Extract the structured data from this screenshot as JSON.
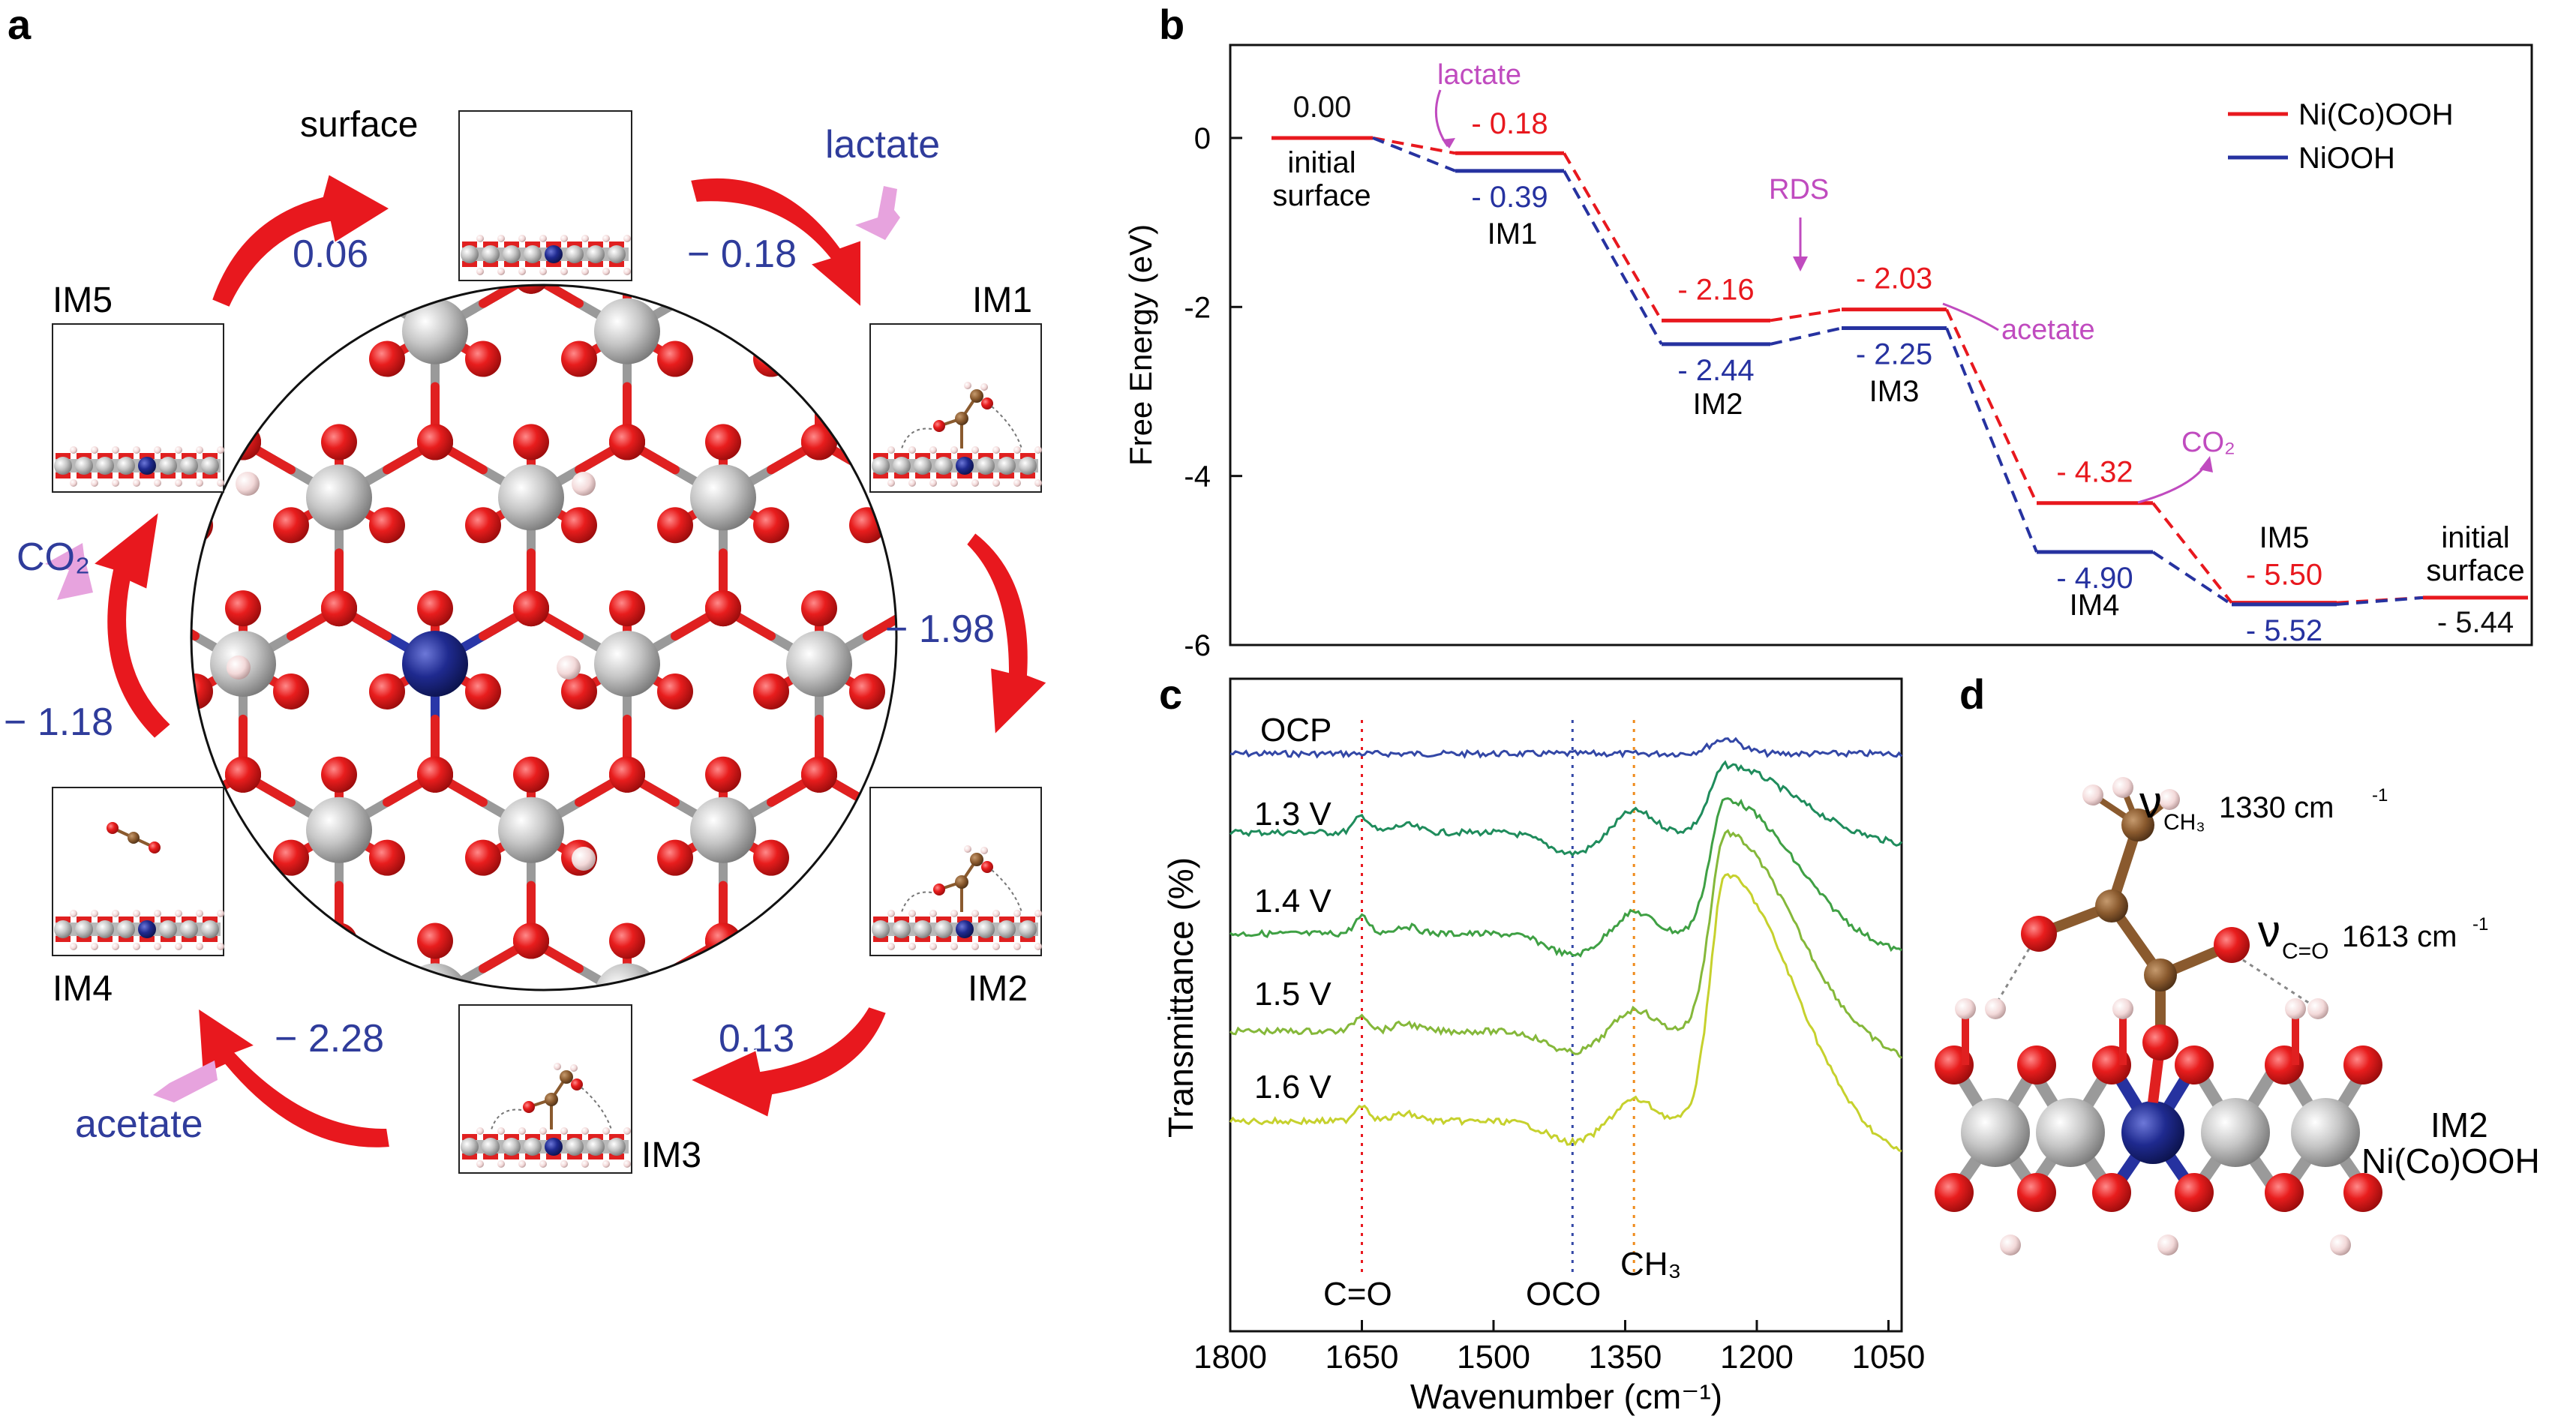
{
  "panels": {
    "a": "a",
    "b": "b",
    "c": "c",
    "d": "d"
  },
  "panel_a": {
    "states": [
      {
        "label": "surface"
      },
      {
        "label": "IM1"
      },
      {
        "label": "IM2"
      },
      {
        "label": "IM3"
      },
      {
        "label": "IM4"
      },
      {
        "label": "IM5"
      }
    ],
    "step_energies": [
      "0.06",
      "− 0.18",
      "− 1.98",
      "0.13",
      "− 2.28",
      "− 1.18"
    ],
    "species": {
      "lactate": "lactate",
      "co2": "CO₂",
      "acetate": "acetate"
    },
    "colors": {
      "arrow": "#e8181e",
      "species": "#d77ad6",
      "energy_text": "#2f3c9b",
      "O": "#e81d1d",
      "metal": "#c8c8c8",
      "Ni": "#1f2a8f",
      "C": "#8a5a2e",
      "H": "#f2d7d7"
    }
  },
  "chart_data": [
    {
      "type": "line",
      "panel": "b",
      "ylabel": "Free Energy (eV)",
      "yticks": [
        "0",
        "-2",
        "-4",
        "-6"
      ],
      "ylim": [
        -6,
        1.1
      ],
      "legend_position": "top-right",
      "series": [
        {
          "name": "Ni(Co)OOH",
          "color": "#e8181e",
          "values": [
            0.0,
            -0.18,
            -2.16,
            -2.03,
            -4.32,
            -5.5,
            -5.44
          ]
        },
        {
          "name": "NiOOH",
          "color": "#2632a0",
          "values": [
            0.0,
            -0.39,
            -2.44,
            -2.25,
            -4.9,
            -5.52,
            -5.44
          ]
        }
      ],
      "value_labels": {
        "red": [
          "0.00",
          "- 0.18",
          "- 2.16",
          "- 2.03",
          "- 4.32",
          "- 5.50",
          "- 5.44"
        ],
        "blue": [
          "- 0.39",
          "- 2.44",
          "- 2.25",
          "- 4.90",
          "- 5.52"
        ]
      },
      "state_labels": [
        "initial\nsurface",
        "IM1",
        "IM2",
        "IM3",
        "IM4",
        "IM5",
        "initial\nsurface"
      ],
      "annotations": {
        "lactate": "lactate",
        "rds": "RDS",
        "acetate": "acetate",
        "co2": "CO₂"
      }
    },
    {
      "type": "line",
      "panel": "c",
      "xlabel": "Wavenumber (cm⁻¹)",
      "ylabel": "Transmittance (%)",
      "xlim": [
        1800,
        1035
      ],
      "xticks": [
        1800,
        1650,
        1500,
        1350,
        1200,
        1050
      ],
      "series": [
        {
          "name": "OCP",
          "color": "#3347a6"
        },
        {
          "name": "1.3 V",
          "color": "#1f8c5c"
        },
        {
          "name": "1.4 V",
          "color": "#3fa044"
        },
        {
          "name": "1.5 V",
          "color": "#85b83a"
        },
        {
          "name": "1.6 V",
          "color": "#c6d12d"
        }
      ],
      "markers": [
        {
          "label": "C=O",
          "x": 1650,
          "color": "#e8181e"
        },
        {
          "label": "OCO",
          "x": 1410,
          "color": "#3347a6"
        },
        {
          "label": "CH₃",
          "x": 1340,
          "color": "#ef8a1a"
        }
      ]
    }
  ],
  "panel_d": {
    "modes": [
      {
        "symbol": "ν",
        "sub": "CH₃",
        "value": " 1330 cm",
        "sup": "-1"
      },
      {
        "symbol": "ν",
        "sub": "C=O",
        "value": "1613 cm",
        "sup": "-1"
      }
    ],
    "label1": "IM2",
    "label2": "Ni(Co)OOH"
  }
}
